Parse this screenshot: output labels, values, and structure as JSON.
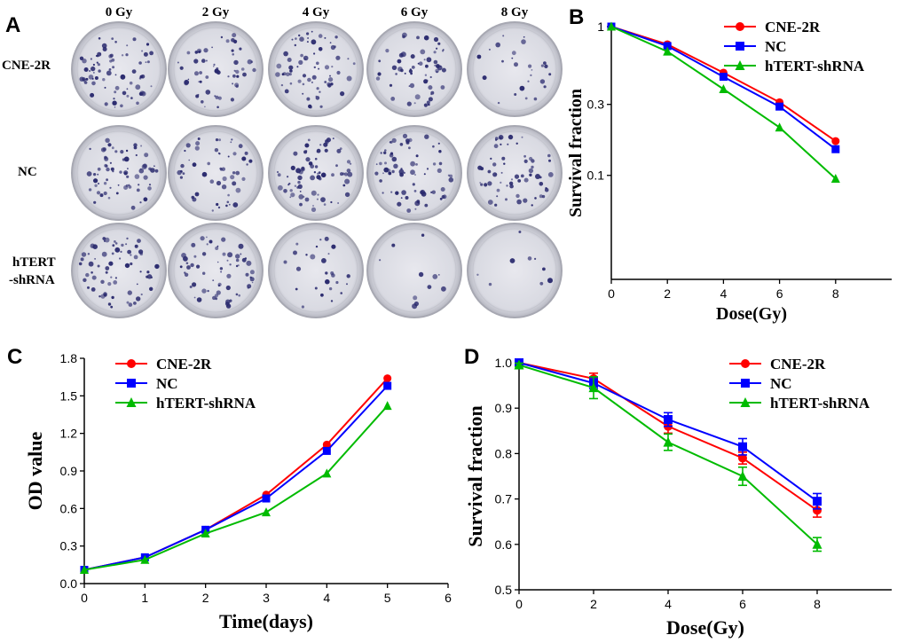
{
  "panels": {
    "A": "A",
    "B": "B",
    "C": "C",
    "D": "D"
  },
  "photo_grid": {
    "columns": [
      "0 Gy",
      "2 Gy",
      "4 Gy",
      "6 Gy",
      "8 Gy"
    ],
    "rows": [
      "CNE-2R",
      "NC",
      "hTERT\n-shRNA"
    ],
    "colony_density": [
      [
        1.0,
        0.75,
        0.9,
        0.8,
        0.35
      ],
      [
        0.9,
        0.7,
        1.0,
        0.95,
        0.8
      ],
      [
        0.9,
        0.85,
        0.35,
        0.15,
        0.12
      ]
    ]
  },
  "colors": {
    "CNE-2R": "#ff0000",
    "NC": "#0000ff",
    "hTERT-shRNA": "#00bb00",
    "stain": "#2a2a6e",
    "dish": "#cfd0d8"
  },
  "chart_data": [
    {
      "id": "B",
      "type": "line",
      "yscale": "log",
      "title": "",
      "xlabel": "Dose(Gy)",
      "ylabel": "Survival fraction",
      "xlim": [
        0,
        10
      ],
      "xticks": [
        0,
        2,
        4,
        6,
        8
      ],
      "ylim": [
        0.02,
        1.0
      ],
      "yticks": [
        0.1,
        0.3,
        1
      ],
      "ytick_labels": [
        "0.1",
        "0.3",
        "1"
      ],
      "legend": "top-right",
      "x": [
        0,
        2,
        4,
        6,
        8
      ],
      "series": [
        {
          "name": "CNE-2R",
          "marker": "circle",
          "values": [
            1.0,
            0.76,
            0.49,
            0.31,
            0.17
          ]
        },
        {
          "name": "NC",
          "marker": "square",
          "values": [
            1.0,
            0.74,
            0.46,
            0.29,
            0.15
          ]
        },
        {
          "name": "hTERT-shRNA",
          "marker": "triangle",
          "values": [
            1.0,
            0.68,
            0.38,
            0.21,
            0.095
          ]
        }
      ]
    },
    {
      "id": "C",
      "type": "line",
      "title": "",
      "xlabel": "Time(days)",
      "ylabel": "OD value",
      "xlim": [
        0,
        6
      ],
      "xticks": [
        0,
        1,
        2,
        3,
        4,
        5,
        6
      ],
      "ylim": [
        0,
        1.8
      ],
      "yticks": [
        0.0,
        0.3,
        0.6,
        0.9,
        1.2,
        1.5,
        1.8
      ],
      "ytick_labels": [
        "0.0",
        "0.3",
        "0.6",
        "0.9",
        "1.2",
        "1.5",
        "1.8"
      ],
      "legend": "top-left",
      "x": [
        0,
        1,
        2,
        3,
        4,
        5
      ],
      "series": [
        {
          "name": "CNE-2R",
          "marker": "circle",
          "values": [
            0.11,
            0.21,
            0.43,
            0.71,
            1.11,
            1.64
          ]
        },
        {
          "name": "NC",
          "marker": "square",
          "values": [
            0.11,
            0.21,
            0.43,
            0.68,
            1.06,
            1.58
          ]
        },
        {
          "name": "hTERT-shRNA",
          "marker": "triangle",
          "values": [
            0.11,
            0.19,
            0.4,
            0.57,
            0.88,
            1.42
          ]
        }
      ]
    },
    {
      "id": "D",
      "type": "line",
      "title": "",
      "xlabel": "Dose(Gy)",
      "ylabel": "Survival fraction",
      "xlim": [
        0,
        10
      ],
      "xticks": [
        0,
        2,
        4,
        6,
        8
      ],
      "ylim": [
        0.5,
        1.0
      ],
      "yticks": [
        0.5,
        0.6,
        0.7,
        0.8,
        0.9,
        1.0
      ],
      "ytick_labels": [
        "0.5",
        "0.6",
        "0.7",
        "0.8",
        "0.9",
        "1.0"
      ],
      "legend": "top-right",
      "x": [
        0,
        2,
        4,
        6,
        8
      ],
      "series": [
        {
          "name": "CNE-2R",
          "marker": "circle",
          "values": [
            1.0,
            0.965,
            0.86,
            0.79,
            0.675
          ],
          "errors": [
            0.004,
            0.012,
            0.015,
            0.013,
            0.015
          ]
        },
        {
          "name": "NC",
          "marker": "square",
          "values": [
            1.0,
            0.955,
            0.875,
            0.815,
            0.695
          ],
          "errors": [
            0.004,
            0.012,
            0.015,
            0.018,
            0.017
          ]
        },
        {
          "name": "hTERT-shRNA",
          "marker": "triangle",
          "values": [
            0.995,
            0.945,
            0.825,
            0.75,
            0.6
          ],
          "errors": [
            0.004,
            0.024,
            0.018,
            0.02,
            0.015
          ]
        }
      ]
    }
  ]
}
